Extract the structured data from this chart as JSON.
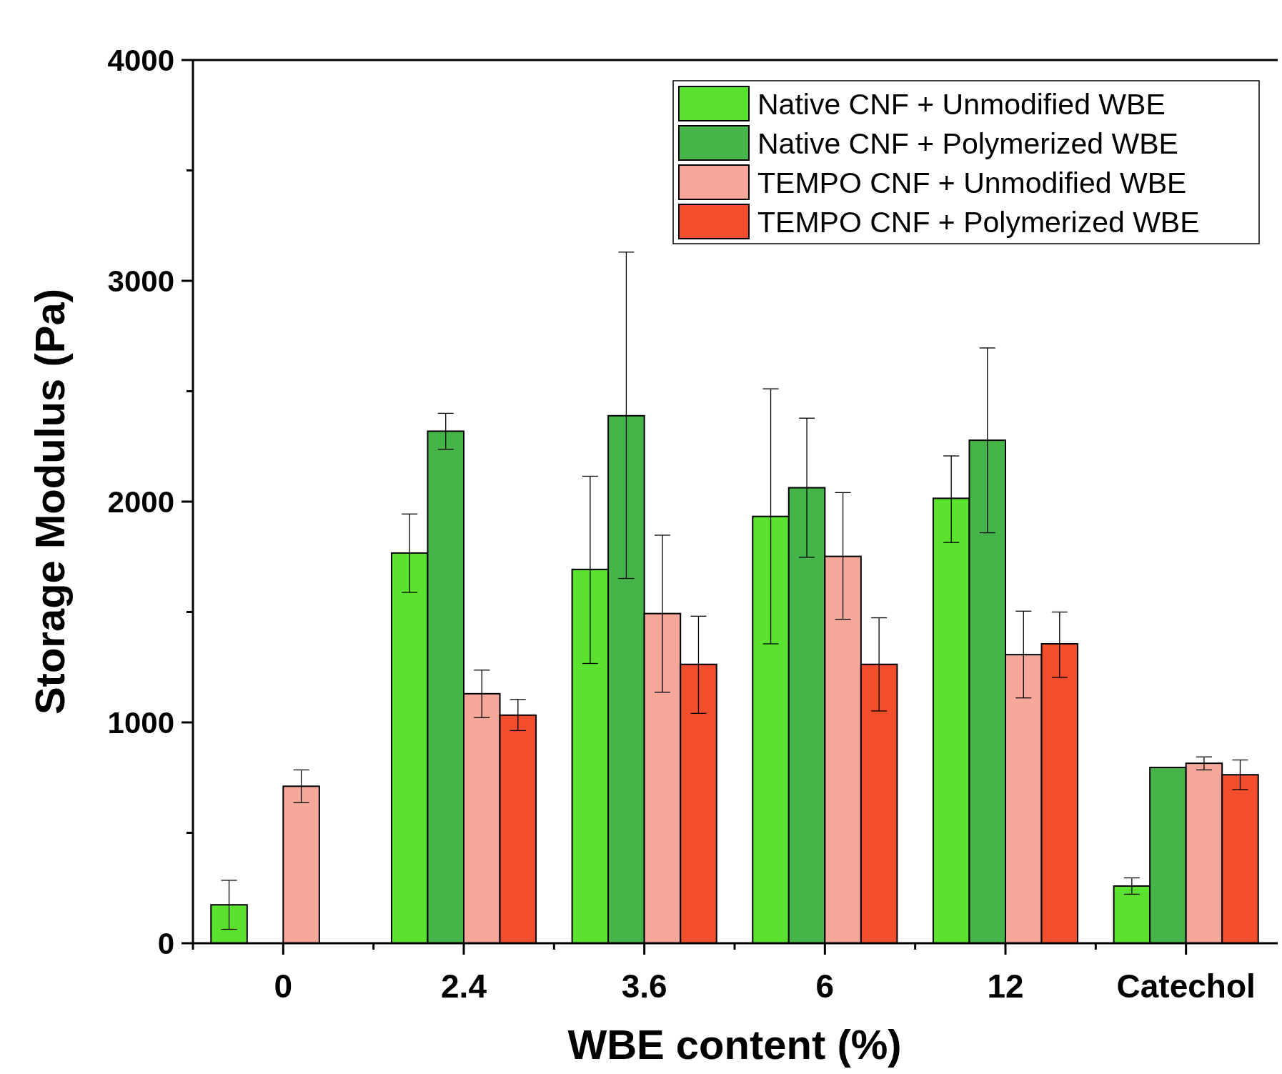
{
  "chart_data": {
    "type": "bar",
    "xlabel": "WBE content (%)",
    "ylabel": "Storage Modulus (Pa)",
    "categories": [
      "0",
      "2.4",
      "3.6",
      "6",
      "12",
      "Catechol"
    ],
    "ylim": [
      0,
      4000
    ],
    "yticks": [
      0,
      {
        "value": 500,
        "label": null
      },
      1000,
      {
        "value": 1500,
        "label": null
      },
      2000,
      {
        "value": 2500,
        "label": null
      },
      3000,
      {
        "value": 3500,
        "label": null
      },
      4000
    ],
    "legend": "top right",
    "grid": false,
    "series": [
      {
        "name": "Native CNF + Unmodified WBE",
        "color": "#5ae22e",
        "values": [
          174,
          1767,
          1693,
          1933,
          2015,
          259
        ],
        "errors": [
          [
            63,
            285
          ],
          [
            1589,
            1944
          ],
          [
            1267,
            2115
          ],
          [
            1356,
            2511
          ],
          [
            1815,
            2207
          ],
          [
            222,
            296
          ]
        ]
      },
      {
        "name": "Native CNF + Polymerized WBE",
        "color": "#46b549",
        "values": [
          null,
          2319,
          2389,
          2063,
          2278,
          796
        ],
        "errors": [
          null,
          [
            2237,
            2400
          ],
          [
            1652,
            3130
          ],
          [
            1748,
            2378
          ],
          [
            1859,
            2696
          ],
          null
        ]
      },
      {
        "name": "TEMPO CNF + Unmodified WBE",
        "color": "#f5a89a",
        "values": [
          711,
          1130,
          1493,
          1752,
          1307,
          815
        ],
        "errors": [
          [
            637,
            785
          ],
          [
            1022,
            1237
          ],
          [
            1137,
            1848
          ],
          [
            1467,
            2041
          ],
          [
            1111,
            1504
          ],
          [
            785,
            844
          ]
        ]
      },
      {
        "name": "TEMPO CNF + Polymerized WBE",
        "color": "#f24e2e",
        "values": [
          null,
          1033,
          1263,
          1263,
          1356,
          763
        ],
        "errors": [
          null,
          [
            963,
            1104
          ],
          [
            1041,
            1481
          ],
          [
            1052,
            1474
          ],
          [
            1204,
            1500
          ],
          [
            696,
            830
          ]
        ]
      }
    ]
  }
}
